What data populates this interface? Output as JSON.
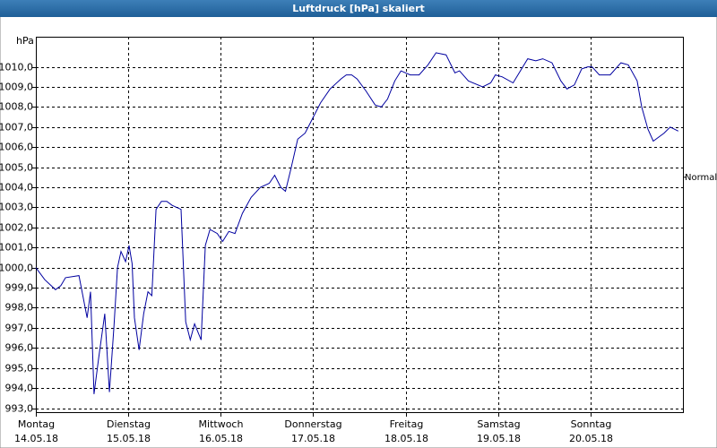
{
  "chart_data": {
    "type": "line",
    "title": "Luftdruck [hPa] skaliert",
    "y_label": "hPa",
    "xlim": [
      0,
      168
    ],
    "xticks": [
      {
        "value": 0,
        "label": "Montag",
        "sublabel": "14.05.18"
      },
      {
        "value": 24,
        "label": "Dienstag",
        "sublabel": "15.05.18"
      },
      {
        "value": 48,
        "label": "Mittwoch",
        "sublabel": "16.05.18"
      },
      {
        "value": 72,
        "label": "Donnerstag",
        "sublabel": "17.05.18"
      },
      {
        "value": 96,
        "label": "Freitag",
        "sublabel": "18.05.18"
      },
      {
        "value": 120,
        "label": "Samstag",
        "sublabel": "19.05.18"
      },
      {
        "value": 144,
        "label": "Sonntag",
        "sublabel": "20.05.18"
      }
    ],
    "ylim": [
      992.8,
      1011.5
    ],
    "yticks": [
      {
        "value": 993,
        "label": "993,0"
      },
      {
        "value": 994,
        "label": "994,0"
      },
      {
        "value": 995,
        "label": "995,0"
      },
      {
        "value": 996,
        "label": "996,0"
      },
      {
        "value": 997,
        "label": "997,0"
      },
      {
        "value": 998,
        "label": "998,0"
      },
      {
        "value": 999,
        "label": "999,0"
      },
      {
        "value": 1000,
        "label": "1000,0"
      },
      {
        "value": 1001,
        "label": "1001,0"
      },
      {
        "value": 1002,
        "label": "1002,0"
      },
      {
        "value": 1003,
        "label": "1003,0"
      },
      {
        "value": 1004,
        "label": "1004,0"
      },
      {
        "value": 1005,
        "label": "1005,0"
      },
      {
        "value": 1006,
        "label": "1006,0"
      },
      {
        "value": 1007,
        "label": "1007,0"
      },
      {
        "value": 1008,
        "label": "1008,0"
      },
      {
        "value": 1009,
        "label": "1009,0"
      },
      {
        "value": 1010,
        "label": "1010,0"
      }
    ],
    "grid": true,
    "reference": {
      "value": 1004.5,
      "label": "Normal"
    },
    "color": "#0000a0",
    "x": [
      0,
      2.3,
      5.1,
      6.5,
      7.7,
      11.2,
      13.3,
      14.2,
      15.1,
      16.3,
      17.9,
      19.1,
      20.3,
      21.2,
      22.1,
      23.3,
      24.2,
      25.0,
      25.6,
      26.8,
      28.0,
      29.1,
      30.1,
      31.2,
      32.6,
      34.0,
      35.4,
      37.7,
      38.9,
      40.1,
      41.2,
      42.9,
      44.0,
      45.2,
      47.1,
      48.5,
      50.1,
      51.7,
      53.6,
      55.9,
      58.3,
      60.6,
      62.0,
      63.6,
      64.8,
      66.2,
      68.0,
      69.9,
      71.5,
      73.9,
      76.4,
      79.2,
      80.6,
      82.0,
      83.4,
      85.7,
      88.1,
      89.7,
      91.3,
      93.2,
      94.8,
      97.2,
      99.5,
      101.8,
      103.9,
      106.5,
      108.8,
      110.0,
      112.3,
      116.0,
      118.1,
      119.3,
      121.1,
      123.9,
      125.8,
      127.7,
      129.8,
      131.6,
      134.0,
      136.3,
      137.9,
      139.8,
      141.7,
      143.3,
      144.4,
      146.3,
      149.1,
      151.9,
      153.8,
      156.1,
      157.3,
      158.9,
      160.3,
      163.1,
      164.7,
      166.8
    ],
    "values": [
      1000.0,
      999.4,
      998.9,
      999.1,
      999.5,
      999.6,
      997.5,
      998.8,
      993.7,
      995.5,
      997.7,
      993.8,
      997.1,
      1000.0,
      1000.8,
      1000.3,
      1001.1,
      1000.2,
      997.5,
      995.9,
      997.7,
      998.8,
      998.6,
      1002.9,
      1003.3,
      1003.3,
      1003.1,
      1002.9,
      997.3,
      996.4,
      997.2,
      996.4,
      1001.1,
      1001.9,
      1001.7,
      1001.3,
      1001.8,
      1001.7,
      1002.7,
      1003.5,
      1004.0,
      1004.2,
      1004.6,
      1004.0,
      1003.8,
      1004.9,
      1006.4,
      1006.7,
      1007.3,
      1008.2,
      1008.9,
      1009.4,
      1009.6,
      1009.6,
      1009.4,
      1008.8,
      1008.1,
      1008.0,
      1008.4,
      1009.3,
      1009.8,
      1009.6,
      1009.6,
      1010.1,
      1010.7,
      1010.6,
      1009.7,
      1009.8,
      1009.3,
      1009.0,
      1009.2,
      1009.6,
      1009.5,
      1009.2,
      1009.8,
      1010.4,
      1010.3,
      1010.4,
      1010.2,
      1009.3,
      1008.9,
      1009.1,
      1009.9,
      1010.0,
      1010.0,
      1009.6,
      1009.6,
      1010.2,
      1010.1,
      1009.3,
      1008.0,
      1006.9,
      1006.3,
      1006.7,
      1007.0,
      1006.8
    ]
  }
}
